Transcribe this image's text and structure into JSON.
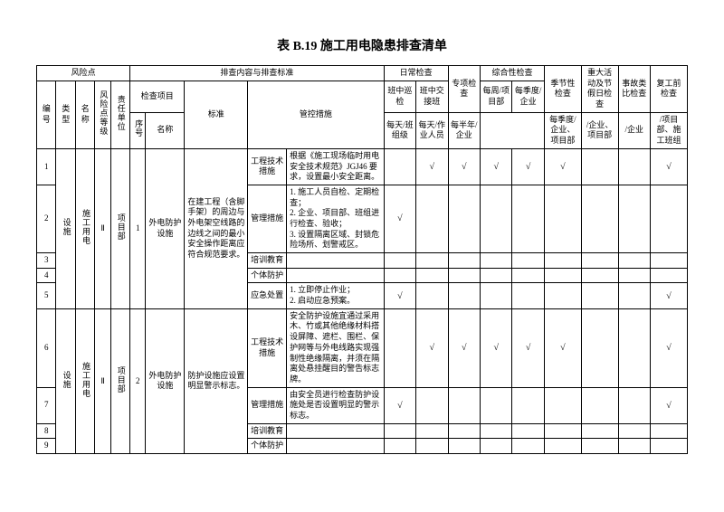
{
  "title": "表 B.19 施工用电隐患排查清单",
  "headers": {
    "risk_point": "风险点",
    "content_std": "排查内容与排查标准",
    "daily_check": "日常检查",
    "special_check": "专项检查",
    "comprehensive_check": "综合性检查",
    "seasonal_check": "季节性检查",
    "major_activity": "重大活动及节假日检查",
    "accident_analogy": "事故类比检查",
    "pre_resume": "复工前检查",
    "seq_no": "编号",
    "type": "类型",
    "name": "名称",
    "risk_level": "风险点等级",
    "resp_unit": "责任单位",
    "check_item": "检查项目",
    "item_seq": "序号",
    "item_name": "名称",
    "standard": "标准",
    "control_measure": "管控措施",
    "patrol_daytime": "班中巡检",
    "patrol_handover": "班中交接班",
    "col_daily_team": "每天/班组级",
    "col_daily_person": "每天/作业人员",
    "col_half_year": "每半年/企业",
    "col_weekly_pm": "每周/项目部",
    "col_seasonal_enterprise": "每季度/企业",
    "col_quarterly_pm": "每季度/企业、项目部",
    "col_enterprise_pm": "/企业、项目部",
    "col_enterprise": "/企业",
    "col_pm_team": "/项目部、施工班组"
  },
  "measure_types": {
    "engineering": "工程技术措施",
    "management": "管理措施",
    "training": "培训教育",
    "ppe": "个体防护",
    "emergency": "应急处置"
  },
  "blocks": [
    {
      "rows": [
        "1",
        "2",
        "3",
        "4",
        "5"
      ],
      "type": "设施",
      "name": "施工用电",
      "risk_level": "Ⅱ",
      "resp_unit": "项目部",
      "item_seq": "1",
      "item_name": "外电防护设施",
      "standard": "在建工程（含脚手架）的周边与外电架空线路的边线之间的最小安全操作距离应符合规范要求。",
      "measures": [
        {
          "type_key": "engineering",
          "desc": "根据《施工现场临时用电安全技术规范》JGJ46 要求，设置最小安全距离。",
          "checks": [
            "",
            "√",
            "√",
            "√",
            "√",
            "√",
            "",
            "",
            "√"
          ]
        },
        {
          "type_key": "management",
          "desc": "1. 施工人员自检、定期检查；\n2. 企业、项目部、班组进行检查、验收；\n3. 设置隔离区域、封锁危险场所、划警戒区。",
          "checks": [
            "√",
            "",
            "",
            "",
            "",
            "",
            "",
            "",
            ""
          ]
        },
        {
          "type_key": "training",
          "desc": "",
          "checks": [
            "",
            "",
            "",
            "",
            "",
            "",
            "",
            "",
            ""
          ]
        },
        {
          "type_key": "ppe",
          "desc": "",
          "checks": [
            "",
            "",
            "",
            "",
            "",
            "",
            "",
            "",
            ""
          ]
        },
        {
          "type_key": "emergency",
          "desc": "1. 立即停止作业；\n2. 启动应急预案。",
          "checks": [
            "√",
            "",
            "",
            "",
            "",
            "",
            "",
            "",
            "√"
          ]
        }
      ]
    },
    {
      "rows": [
        "6",
        "7",
        "8",
        "9"
      ],
      "type": "设施",
      "name": "施工用电",
      "risk_level": "Ⅱ",
      "resp_unit": "项目部",
      "item_seq": "2",
      "item_name": "外电防护设施",
      "standard": "防护设施应设置明显警示标志。",
      "measures": [
        {
          "type_key": "engineering",
          "desc": "安全防护设施宜通过采用木、竹或其他绝缘材料搭设屏障、遮栏、围栏、保护网等与外电线路实现强制性绝缘隔离，并须在隔离处悬挂醒目的警告标志牌。",
          "checks": [
            "",
            "√",
            "√",
            "√",
            "√",
            "√",
            "",
            "",
            "√"
          ]
        },
        {
          "type_key": "management",
          "desc": "由安全员进行检查防护设施处是否设置明显的警示标志。",
          "checks": [
            "√",
            "",
            "",
            "",
            "",
            "",
            "",
            "",
            "√"
          ]
        },
        {
          "type_key": "training",
          "desc": "",
          "checks": [
            "",
            "",
            "",
            "",
            "",
            "",
            "",
            "",
            ""
          ]
        },
        {
          "type_key": "ppe",
          "desc": "",
          "checks": [
            "",
            "",
            "",
            "",
            "",
            "",
            "",
            "",
            ""
          ]
        }
      ]
    }
  ]
}
